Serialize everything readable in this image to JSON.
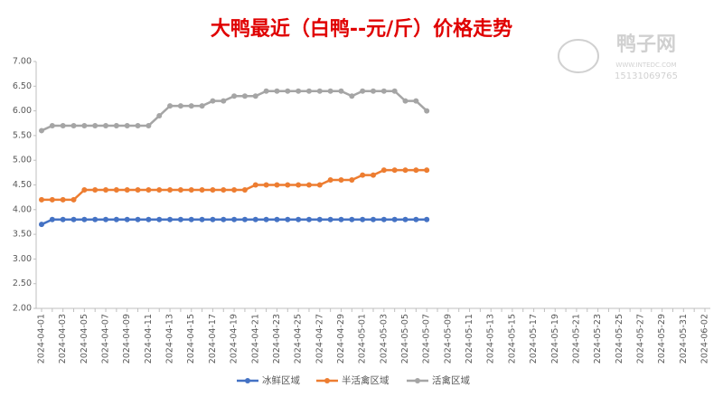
{
  "chart_data": {
    "type": "line",
    "title": "大鸭最近（白鸭--元/斤）价格走势",
    "watermark": {
      "name": "鸭子网",
      "url": "WWW.INTEDC.COM",
      "phone": "15131069765"
    },
    "categories": [
      "2024-04-01",
      null,
      "2024-04-03",
      null,
      "2024-04-05",
      null,
      "2024-04-07",
      null,
      "2024-04-09",
      null,
      "2024-04-11",
      null,
      "2024-04-13",
      null,
      "2024-04-15",
      null,
      "2024-04-17",
      null,
      "2024-04-19",
      null,
      "2024-04-21",
      null,
      "2024-04-23",
      null,
      "2024-04-25",
      null,
      "2024-04-27",
      null,
      "2024-04-29",
      null,
      "2024-05-01",
      null,
      "2024-05-03",
      null,
      "2024-05-05",
      null,
      "2024-05-07",
      null,
      "2024-05-09",
      null,
      "2024-05-11",
      null,
      "2024-05-13",
      null,
      "2024-05-15",
      null,
      "2024-05-17",
      null,
      "2024-05-19",
      null,
      "2024-05-21",
      null,
      "2024-05-23",
      null,
      "2024-05-25",
      null,
      "2024-05-27",
      null,
      "2024-05-29",
      null,
      "2024-05-31",
      null,
      "2024-06-02"
    ],
    "series": [
      {
        "name": "冰鲜区域",
        "color": "#4472c4",
        "values": [
          3.7,
          3.8,
          3.8,
          3.8,
          3.8,
          3.8,
          3.8,
          3.8,
          3.8,
          3.8,
          3.8,
          3.8,
          3.8,
          3.8,
          3.8,
          3.8,
          3.8,
          3.8,
          3.8,
          3.8,
          3.8,
          3.8,
          3.8,
          3.8,
          3.8,
          3.8,
          3.8,
          3.8,
          3.8,
          3.8,
          3.8,
          3.8,
          3.8,
          3.8,
          3.8,
          3.8,
          3.8,
          null,
          null,
          null,
          null,
          null,
          null,
          null,
          null,
          null,
          null,
          null,
          null,
          null,
          null,
          null,
          null,
          null,
          null,
          null,
          null,
          null,
          null,
          null,
          null,
          null,
          null
        ]
      },
      {
        "name": "半活禽区域",
        "color": "#ed7d31",
        "values": [
          4.2,
          4.2,
          4.2,
          4.2,
          4.4,
          4.4,
          4.4,
          4.4,
          4.4,
          4.4,
          4.4,
          4.4,
          4.4,
          4.4,
          4.4,
          4.4,
          4.4,
          4.4,
          4.4,
          4.4,
          4.5,
          4.5,
          4.5,
          4.5,
          4.5,
          4.5,
          4.5,
          4.6,
          4.6,
          4.6,
          4.7,
          4.7,
          4.8,
          4.8,
          4.8,
          4.8,
          4.8,
          null,
          null,
          null,
          null,
          null,
          null,
          null,
          null,
          null,
          null,
          null,
          null,
          null,
          null,
          null,
          null,
          null,
          null,
          null,
          null,
          null,
          null,
          null,
          null,
          null,
          null
        ]
      },
      {
        "name": "活禽区域",
        "color": "#a5a5a5",
        "values": [
          5.6,
          5.7,
          5.7,
          5.7,
          5.7,
          5.7,
          5.7,
          5.7,
          5.7,
          5.7,
          5.7,
          5.9,
          6.1,
          6.1,
          6.1,
          6.1,
          6.2,
          6.2,
          6.3,
          6.3,
          6.3,
          6.4,
          6.4,
          6.4,
          6.4,
          6.4,
          6.4,
          6.4,
          6.4,
          6.3,
          6.4,
          6.4,
          6.4,
          6.4,
          6.2,
          6.2,
          6.0,
          null,
          null,
          null,
          null,
          null,
          null,
          null,
          null,
          null,
          null,
          null,
          null,
          null,
          null,
          null,
          null,
          null,
          null,
          null,
          null,
          null,
          null,
          null,
          null,
          null,
          null
        ]
      }
    ],
    "ylim": [
      2,
      7
    ],
    "yticks": [
      {
        "value": 2,
        "label": "2.00"
      },
      {
        "value": 2.5,
        "label": "2.50"
      },
      {
        "value": 3,
        "label": "3.00"
      },
      {
        "value": 3.5,
        "label": "3.50"
      },
      {
        "value": 4,
        "label": "4.00"
      },
      {
        "value": 4.5,
        "label": "4.50"
      },
      {
        "value": 5,
        "label": "5.00"
      },
      {
        "value": 5.5,
        "label": "5.50"
      },
      {
        "value": 6,
        "label": "6.00"
      },
      {
        "value": 6.5,
        "label": "6.50"
      },
      {
        "value": 7,
        "label": "7.00"
      }
    ],
    "legend": "bottom"
  }
}
